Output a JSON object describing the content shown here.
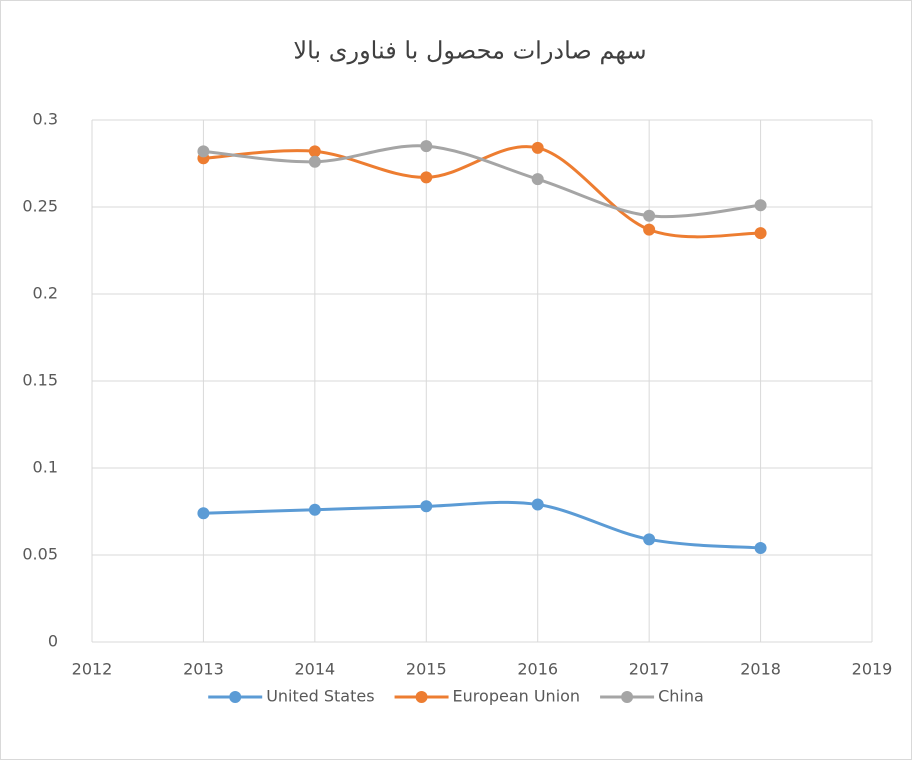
{
  "chart_data": {
    "type": "line",
    "title": "سهم صادرات محصول با فناوری بالا",
    "x": [
      2013,
      2014,
      2015,
      2016,
      2017,
      2018
    ],
    "series": [
      {
        "name": "United States",
        "color": "#5b9bd5",
        "values": [
          0.074,
          0.076,
          0.078,
          0.079,
          0.059,
          0.054
        ]
      },
      {
        "name": "European Union",
        "color": "#ed7d31",
        "values": [
          0.278,
          0.282,
          0.267,
          0.284,
          0.237,
          0.235
        ]
      },
      {
        "name": "China",
        "color": "#a5a5a5",
        "values": [
          0.282,
          0.276,
          0.285,
          0.266,
          0.245,
          0.251
        ]
      }
    ],
    "xlim": [
      2012,
      2019
    ],
    "xticks": [
      2012,
      2013,
      2014,
      2015,
      2016,
      2017,
      2018,
      2019
    ],
    "ylim": [
      0,
      0.3
    ],
    "yticks": [
      0,
      0.05,
      0.1,
      0.15,
      0.2,
      0.25,
      0.3
    ],
    "grid": true,
    "smooth": true,
    "legend": "bottom"
  }
}
